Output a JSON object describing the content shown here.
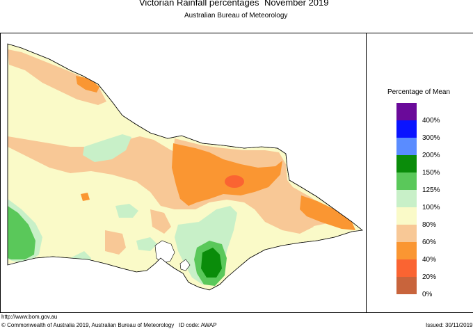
{
  "header": {
    "title": "Victorian Rainfall percentages",
    "period": "November 2019",
    "agency": "Australian Bureau of Meteorology"
  },
  "legend": {
    "title": "Percentage of Mean",
    "swatches": [
      {
        "color": "#6a0a9a"
      },
      {
        "color": "#0a14ff"
      },
      {
        "color": "#5a8cff"
      },
      {
        "color": "#0a8c0a"
      },
      {
        "color": "#5ac85a"
      },
      {
        "color": "#c8f0c8"
      },
      {
        "color": "#fafac8"
      },
      {
        "color": "#f8c896"
      },
      {
        "color": "#fa9632"
      },
      {
        "color": "#fa6432"
      },
      {
        "color": "#c8643c"
      }
    ],
    "ticks": [
      "400%",
      "300%",
      "200%",
      "150%",
      "125%",
      "100%",
      "80%",
      "60%",
      "40%",
      "20%",
      "0%"
    ]
  },
  "footer": {
    "url": "http://www.bom.gov.au",
    "copyright": "© Commonwealth of Australia 2019, Australian Bureau of Meteorology",
    "id_code": "ID code: AWAP",
    "issued": "Issued: 30/11/2019"
  }
}
